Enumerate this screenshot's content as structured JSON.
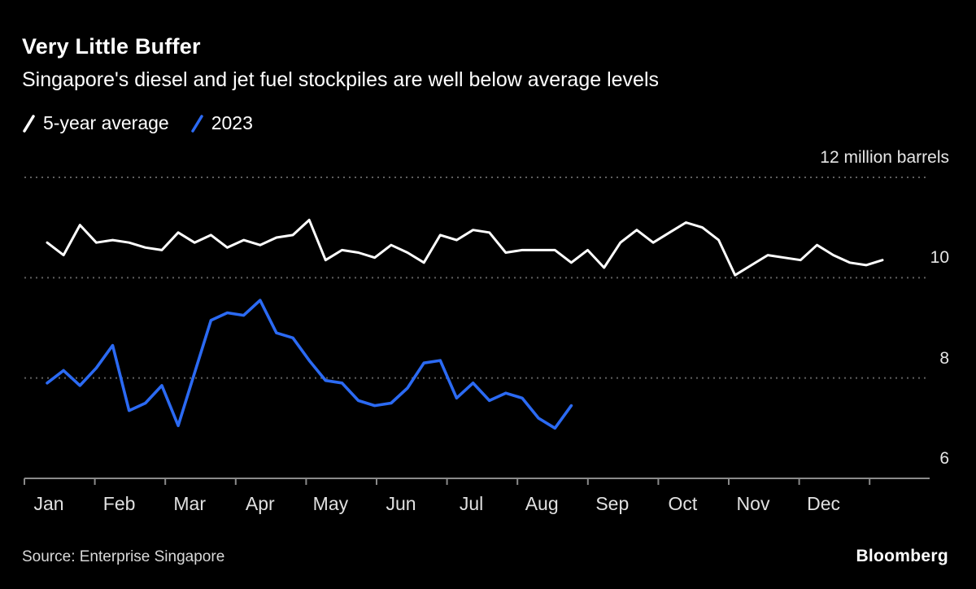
{
  "header": {
    "title": "Very Little Buffer",
    "subtitle": "Singapore's diesel and jet fuel stockpiles are well below average levels"
  },
  "legend": [
    {
      "label": "5-year average",
      "color": "#ffffff"
    },
    {
      "label": "2023",
      "color": "#2b6af3"
    }
  ],
  "footer": {
    "source": "Source: Enterprise Singapore",
    "brand": "Bloomberg"
  },
  "colors": {
    "background": "#000000",
    "gridline": "#5f5f5f",
    "axis": "#8a8a8a",
    "white_series": "#ffffff",
    "blue_series": "#2b6af3"
  },
  "chart_data": {
    "type": "line",
    "title": "Very Little Buffer",
    "subtitle": "Singapore's diesel and jet fuel stockpiles are well below average levels",
    "unit": "million barrels",
    "x_unit": "weeks of the year",
    "categories": [
      "Jan",
      "Feb",
      "Mar",
      "Apr",
      "May",
      "Jun",
      "Jul",
      "Aug",
      "Sep",
      "Oct",
      "Nov",
      "Dec"
    ],
    "ylim": [
      6,
      12.3
    ],
    "y_ticks": [
      {
        "value": 12,
        "label": "12 million barrels",
        "grid": true
      },
      {
        "value": 10,
        "label": "10",
        "grid": true
      },
      {
        "value": 8,
        "label": "8",
        "grid": true
      },
      {
        "value": 6,
        "label": "6",
        "grid": false
      }
    ],
    "grid": "dotted horizontal",
    "legend_position": "top-left",
    "series": [
      {
        "name": "5-year average",
        "color": "#ffffff",
        "values": [
          10.7,
          10.45,
          11.05,
          10.7,
          10.75,
          10.7,
          10.6,
          10.55,
          10.9,
          10.7,
          10.85,
          10.6,
          10.75,
          10.65,
          10.8,
          10.85,
          11.15,
          10.35,
          10.55,
          10.5,
          10.4,
          10.65,
          10.5,
          10.3,
          10.85,
          10.75,
          10.95,
          10.9,
          10.5,
          10.55,
          10.55,
          10.55,
          10.3,
          10.55,
          10.2,
          10.7,
          10.95,
          10.7,
          10.9,
          11.1,
          11.0,
          10.75,
          10.05,
          10.25,
          10.45,
          10.4,
          10.35,
          10.65,
          10.45,
          10.3,
          10.25,
          10.35
        ]
      },
      {
        "name": "2023",
        "color": "#2b6af3",
        "values": [
          7.9,
          8.15,
          7.85,
          8.2,
          8.65,
          7.35,
          7.5,
          7.85,
          7.05,
          8.1,
          9.15,
          9.3,
          9.25,
          9.55,
          8.9,
          8.8,
          8.35,
          7.95,
          7.9,
          7.55,
          7.45,
          7.5,
          7.8,
          8.3,
          8.35,
          7.6,
          7.9,
          7.55,
          7.7,
          7.6,
          7.2,
          7.0,
          7.45
        ]
      }
    ]
  }
}
